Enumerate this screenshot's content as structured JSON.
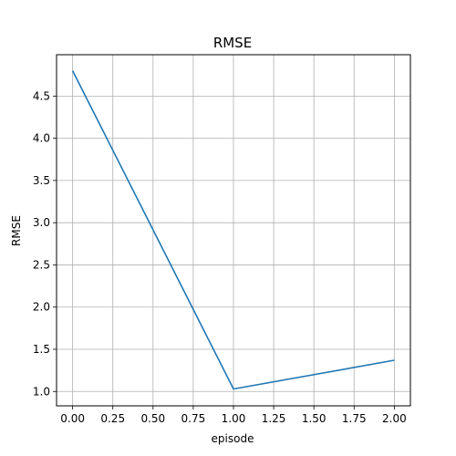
{
  "chart_data": {
    "type": "line",
    "title": "RMSE",
    "xlabel": "episode",
    "ylabel": "RMSE",
    "xlim": [
      -0.1,
      2.1
    ],
    "ylim": [
      0.83,
      4.99
    ],
    "x_ticks": [
      "0.00",
      "0.25",
      "0.50",
      "0.75",
      "1.00",
      "1.25",
      "1.50",
      "1.75",
      "2.00"
    ],
    "y_ticks": [
      "1.0",
      "1.5",
      "2.0",
      "2.5",
      "3.0",
      "3.5",
      "4.0",
      "4.5"
    ],
    "grid": true,
    "series": [
      {
        "x": [
          0,
          1,
          2
        ],
        "y": [
          4.8,
          1.03,
          1.37
        ],
        "color": "#1f77b4"
      }
    ]
  }
}
